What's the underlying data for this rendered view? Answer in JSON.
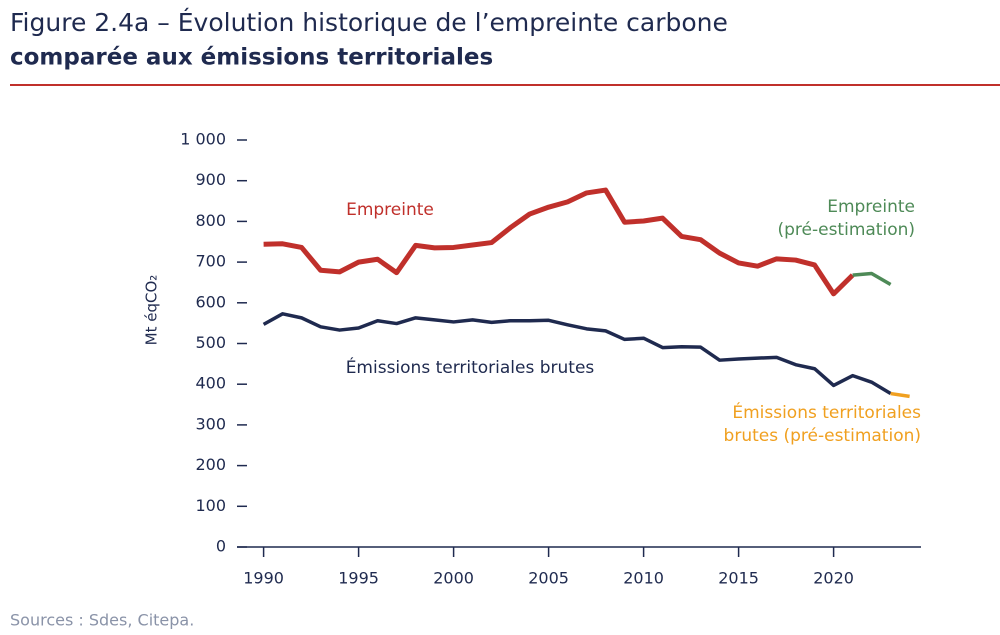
{
  "chart_data": {
    "type": "line",
    "title": "Figure 2.4a – Évolution historique de l’empreinte carbone",
    "subtitle": "comparée aux émissions territoriales",
    "ylabel": "Mt éqCO₂",
    "source": "Sources : Sdes, Citepa.",
    "xlim": [
      1988.6,
      2024.6
    ],
    "xticks": [
      1990,
      1995,
      2000,
      2005,
      2010,
      2015,
      2020
    ],
    "ylim": [
      0,
      1000
    ],
    "yticks": [
      0,
      100,
      200,
      300,
      400,
      500,
      600,
      700,
      800,
      {
        "value": 1000,
        "label": "1 000"
      },
      900
    ],
    "series": [
      {
        "color": "#c0302b",
        "x": [
          1990,
          1991,
          1992,
          1993,
          1994,
          1995,
          1996,
          1997,
          1998,
          1999,
          2000,
          2001,
          2002,
          2003,
          2004,
          2005,
          2006,
          2007,
          2008,
          2009,
          2010,
          2011,
          2012,
          2013,
          2014,
          2015,
          2016,
          2017,
          2018,
          2019,
          2020,
          2021
        ],
        "values": [
          744,
          745,
          736,
          680,
          676,
          700,
          707,
          674,
          741,
          735,
          736,
          742,
          748,
          785,
          818,
          835,
          848,
          870,
          877,
          798,
          801,
          808,
          763,
          755,
          722,
          698,
          690,
          708,
          705,
          693,
          622,
          668
        ]
      },
      {
        "color": "#4e8a57",
        "x": [
          2021,
          2022,
          2023
        ],
        "values": [
          668,
          672,
          645
        ]
      },
      {
        "color": "#1f2a4f",
        "x": [
          1990,
          1991,
          1992,
          1993,
          1994,
          1995,
          1996,
          1997,
          1998,
          1999,
          2000,
          2001,
          2002,
          2003,
          2004,
          2005,
          2006,
          2007,
          2008,
          2009,
          2010,
          2011,
          2012,
          2013,
          2014,
          2015,
          2016,
          2017,
          2018,
          2019,
          2020,
          2021,
          2022,
          2023
        ],
        "values": [
          547,
          573,
          563,
          541,
          533,
          538,
          556,
          549,
          563,
          558,
          553,
          558,
          552,
          556,
          556,
          557,
          546,
          536,
          531,
          510,
          513,
          490,
          492,
          491,
          459,
          462,
          464,
          466,
          448,
          438,
          397,
          421,
          405,
          377
        ]
      },
      {
        "color": "#f0a020",
        "x": [
          2023,
          2024
        ],
        "values": [
          377,
          370
        ]
      }
    ],
    "annotations": [
      {
        "lines": [
          "Empreinte"
        ],
        "color": "#c0302b"
      },
      {
        "lines": [
          "Empreinte",
          "(pré-estimation)"
        ],
        "color": "#4e8a57"
      },
      {
        "lines": [
          "Émissions territoriales brutes"
        ],
        "color": "#1f2a4f"
      },
      {
        "lines": [
          "Émissions territoriales",
          "brutes (pré-estimation)"
        ],
        "color": "#f0a020"
      }
    ]
  }
}
